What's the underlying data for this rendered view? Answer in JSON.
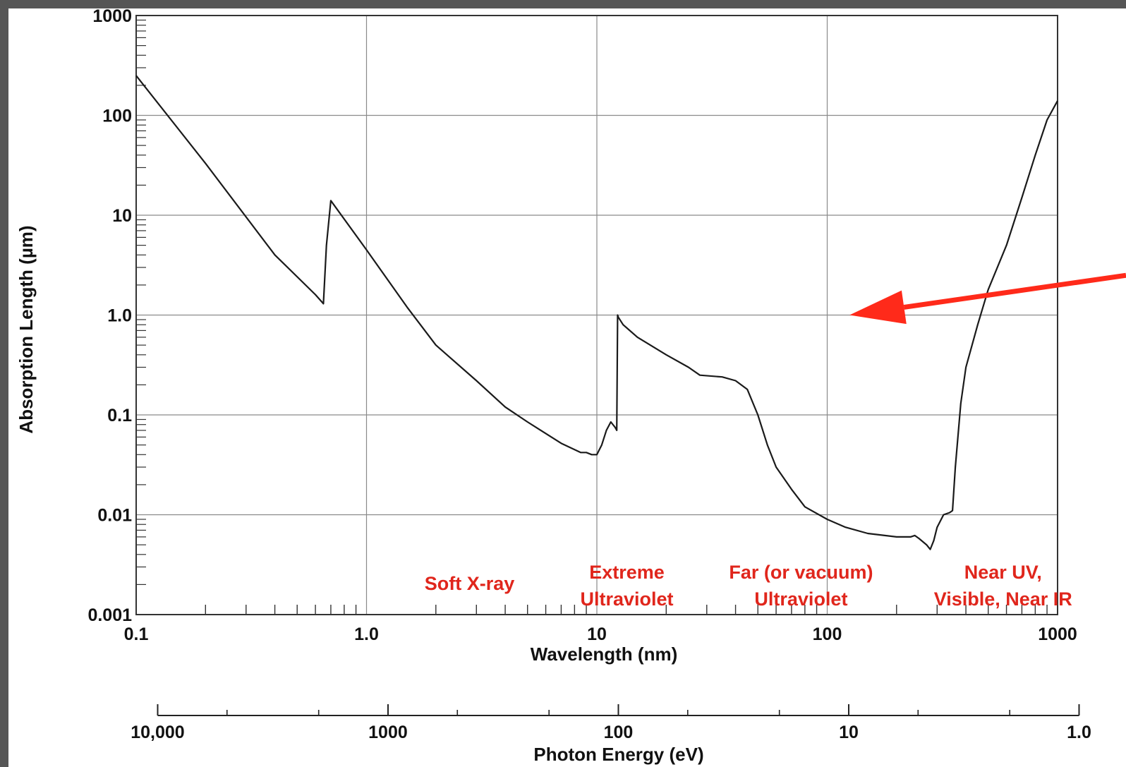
{
  "chart_data": {
    "type": "line",
    "xlabel": "Wavelength (nm)",
    "ylabel": "Absorption Length (µm)",
    "x_scale": "log",
    "y_scale": "log",
    "xlim": [
      0.1,
      1000
    ],
    "ylim": [
      0.001,
      1000
    ],
    "grid": true,
    "x_ticks": [
      {
        "value": 0.1,
        "label": "0.1"
      },
      {
        "value": 1,
        "label": "1.0"
      },
      {
        "value": 10,
        "label": "10"
      },
      {
        "value": 100,
        "label": "100"
      },
      {
        "value": 1000,
        "label": "1000"
      }
    ],
    "y_ticks": [
      {
        "value": 1000,
        "label": "1000"
      },
      {
        "value": 100,
        "label": "100"
      },
      {
        "value": 10,
        "label": "10"
      },
      {
        "value": 1,
        "label": "1.0"
      },
      {
        "value": 0.1,
        "label": "0.1"
      },
      {
        "value": 0.01,
        "label": "0.01"
      },
      {
        "value": 0.001,
        "label": "0.001"
      }
    ],
    "secondary_axis": {
      "label": "Photon Energy (eV)",
      "ticks": [
        {
          "value": 10000,
          "label": "10,000"
        },
        {
          "value": 1000,
          "label": "1000"
        },
        {
          "value": 100,
          "label": "100"
        },
        {
          "value": 10,
          "label": "10"
        },
        {
          "value": 1,
          "label": "1.0"
        }
      ]
    },
    "series": [
      {
        "color": "#1a1a1a",
        "x": [
          0.1,
          0.2,
          0.4,
          0.6,
          0.65,
          0.67,
          0.7,
          1.0,
          1.5,
          2.0,
          3.0,
          4.0,
          5.0,
          7.0,
          8.5,
          9.0,
          9.5,
          10.0,
          10.5,
          11.0,
          11.5,
          12.0,
          12.2,
          12.3,
          12.4,
          13.0,
          15.0,
          20.0,
          25.0,
          28.0,
          35.0,
          40.0,
          45.0,
          50.0,
          55.0,
          60.0,
          70.0,
          80.0,
          100.0,
          120.0,
          150.0,
          200.0,
          230.0,
          240.0,
          250.0,
          270.0,
          280.0,
          290.0,
          300.0,
          320.0,
          340.0,
          350.0,
          360.0,
          380.0,
          400.0,
          450.0,
          500.0,
          600.0,
          700.0,
          800.0,
          900.0,
          1000.0
        ],
        "y": [
          250,
          33,
          4,
          1.6,
          1.3,
          5,
          14,
          4.5,
          1.2,
          0.5,
          0.22,
          0.12,
          0.085,
          0.052,
          0.042,
          0.042,
          0.04,
          0.04,
          0.05,
          0.07,
          0.085,
          0.075,
          0.07,
          1.0,
          0.95,
          0.8,
          0.6,
          0.4,
          0.3,
          0.25,
          0.24,
          0.22,
          0.18,
          0.1,
          0.05,
          0.03,
          0.018,
          0.012,
          0.009,
          0.0075,
          0.0065,
          0.006,
          0.006,
          0.0062,
          0.0058,
          0.005,
          0.0045,
          0.0055,
          0.0075,
          0.01,
          0.0105,
          0.011,
          0.03,
          0.13,
          0.3,
          0.8,
          1.8,
          5,
          15,
          40,
          90,
          140
        ]
      }
    ],
    "annotations": [
      {
        "text": "Soft X-ray",
        "x": 2.8,
        "y": 0.0023
      },
      {
        "lines": [
          "Extreme",
          "Ultraviolet"
        ],
        "x": 13.5,
        "y": 0.0023
      },
      {
        "lines": [
          "Far (or vacuum)",
          "Ultraviolet"
        ],
        "x": 77,
        "y": 0.0023
      },
      {
        "lines": [
          "Near UV,",
          "Visible, Near IR"
        ],
        "x": 580,
        "y": 0.0023
      }
    ],
    "arrow": {
      "color": "#ff2a1a",
      "from": {
        "x": 3500,
        "y": 2.5
      },
      "to": {
        "x": 125,
        "y": 1.0
      }
    }
  }
}
